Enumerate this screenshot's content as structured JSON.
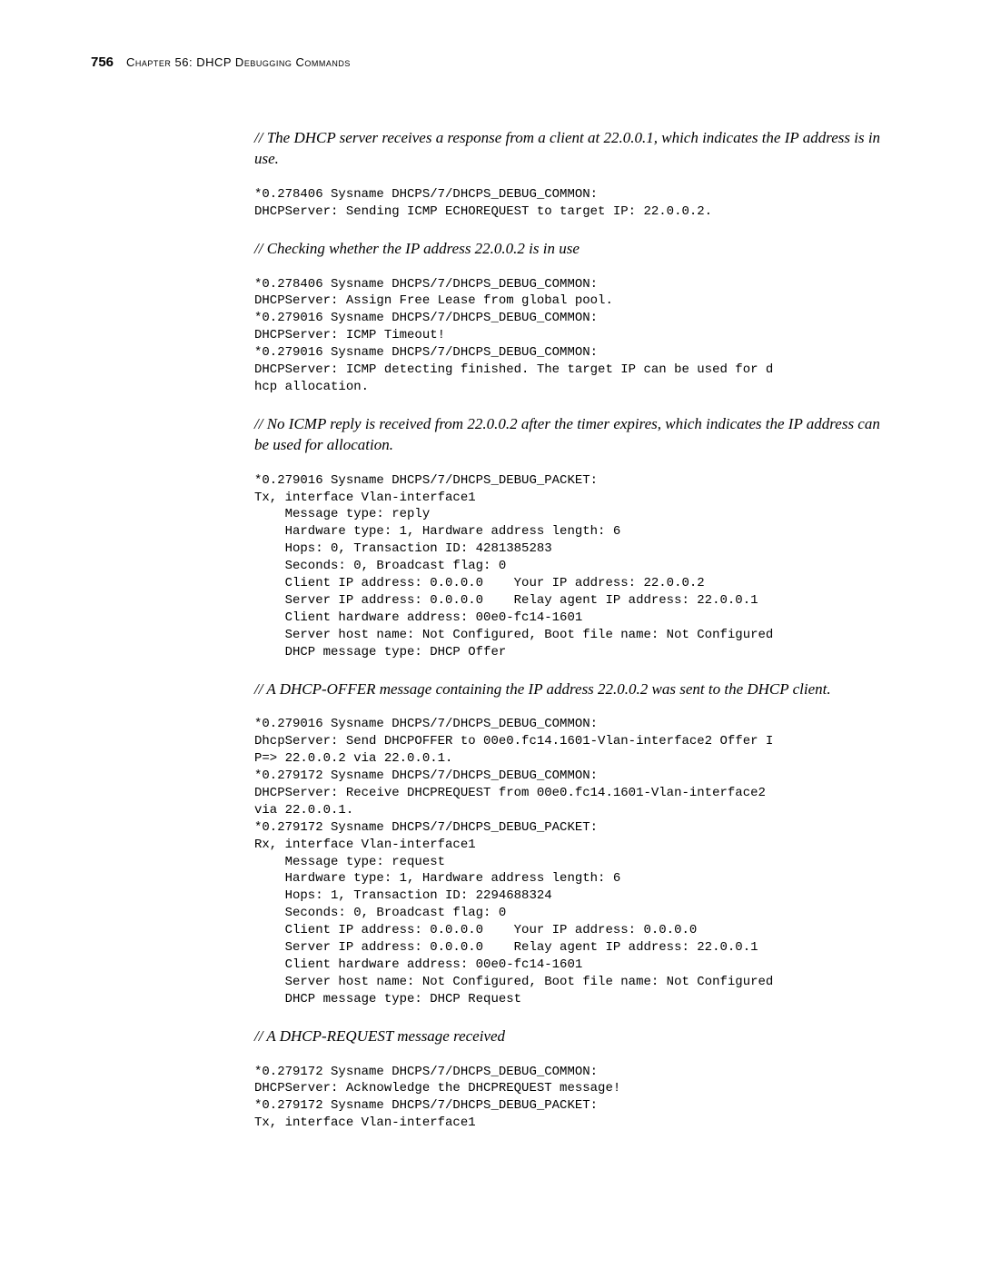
{
  "header": {
    "page_number": "756",
    "chapter_title": "Chapter 56: DHCP Debugging Commands"
  },
  "sections": [
    {
      "comment": "// The DHCP server receives a response from a client at 22.0.0.1, which indicates the IP address is in use.",
      "code": "*0.278406 Sysname DHCPS/7/DHCPS_DEBUG_COMMON:\nDHCPServer: Sending ICMP ECHOREQUEST to target IP: 22.0.0.2."
    },
    {
      "comment": "// Checking whether the IP address 22.0.0.2 is in use",
      "code": "*0.278406 Sysname DHCPS/7/DHCPS_DEBUG_COMMON:\nDHCPServer: Assign Free Lease from global pool.\n*0.279016 Sysname DHCPS/7/DHCPS_DEBUG_COMMON:\nDHCPServer: ICMP Timeout!\n*0.279016 Sysname DHCPS/7/DHCPS_DEBUG_COMMON:\nDHCPServer: ICMP detecting finished. The target IP can be used for d\nhcp allocation."
    },
    {
      "comment": "// No ICMP reply is received from 22.0.0.2 after the timer expires, which indicates the IP address can be used for allocation.",
      "code": "*0.279016 Sysname DHCPS/7/DHCPS_DEBUG_PACKET:\nTx, interface Vlan-interface1\n    Message type: reply\n    Hardware type: 1, Hardware address length: 6\n    Hops: 0, Transaction ID: 4281385283\n    Seconds: 0, Broadcast flag: 0\n    Client IP address: 0.0.0.0    Your IP address: 22.0.0.2\n    Server IP address: 0.0.0.0    Relay agent IP address: 22.0.0.1\n    Client hardware address: 00e0-fc14-1601\n    Server host name: Not Configured, Boot file name: Not Configured\n    DHCP message type: DHCP Offer"
    },
    {
      "comment": "// A DHCP-OFFER message containing the IP address 22.0.0.2 was sent to the DHCP client.",
      "code": "*0.279016 Sysname DHCPS/7/DHCPS_DEBUG_COMMON:\nDhcpServer: Send DHCPOFFER to 00e0.fc14.1601-Vlan-interface2 Offer I\nP=> 22.0.0.2 via 22.0.0.1.\n*0.279172 Sysname DHCPS/7/DHCPS_DEBUG_COMMON:\nDHCPServer: Receive DHCPREQUEST from 00e0.fc14.1601-Vlan-interface2\nvia 22.0.0.1.\n*0.279172 Sysname DHCPS/7/DHCPS_DEBUG_PACKET:\nRx, interface Vlan-interface1\n    Message type: request\n    Hardware type: 1, Hardware address length: 6\n    Hops: 1, Transaction ID: 2294688324\n    Seconds: 0, Broadcast flag: 0\n    Client IP address: 0.0.0.0    Your IP address: 0.0.0.0\n    Server IP address: 0.0.0.0    Relay agent IP address: 22.0.0.1\n    Client hardware address: 00e0-fc14-1601\n    Server host name: Not Configured, Boot file name: Not Configured\n    DHCP message type: DHCP Request"
    },
    {
      "comment": "// A DHCP-REQUEST message received",
      "code": "*0.279172 Sysname DHCPS/7/DHCPS_DEBUG_COMMON:\nDHCPServer: Acknowledge the DHCPREQUEST message!\n*0.279172 Sysname DHCPS/7/DHCPS_DEBUG_PACKET:\nTx, interface Vlan-interface1"
    }
  ]
}
